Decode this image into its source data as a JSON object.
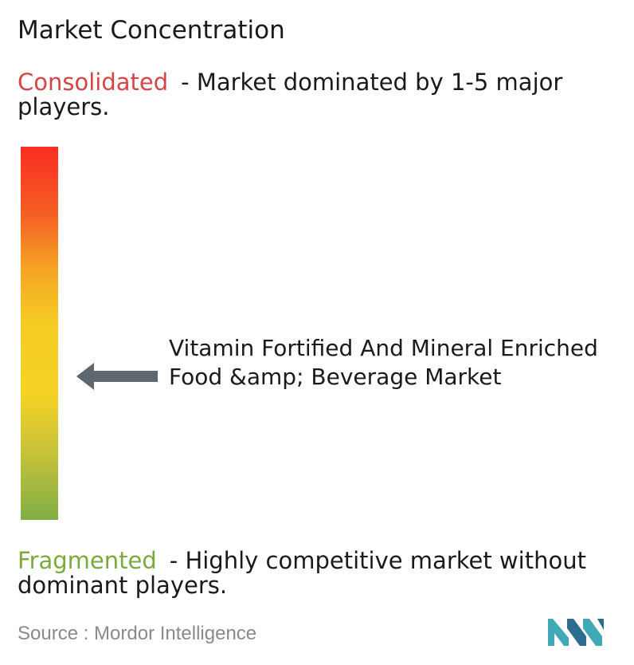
{
  "title": "Market Concentration",
  "consolidated": {
    "label": "Consolidated",
    "description": "- Market dominated by 1-5 major players."
  },
  "fragmented": {
    "label": "Fragmented",
    "description": "- Highly competitive market without dominant players."
  },
  "market": {
    "name": "Vitamin Fortified And Mineral Enriched Food &amp; Beverage Market",
    "concentration_level": 0.39
  },
  "source": {
    "text": "Source :  Mordor Intelligence"
  },
  "colors": {
    "consolidated": "#d64545",
    "fragmented": "#7aaa3c",
    "arrow": "#5f6770",
    "logo_teal": "#3fa9b5",
    "logo_blue": "#2b6c8f"
  },
  "icons": {
    "arrow": "left-arrow-icon",
    "logo": "mordor-intelligence-logo"
  }
}
